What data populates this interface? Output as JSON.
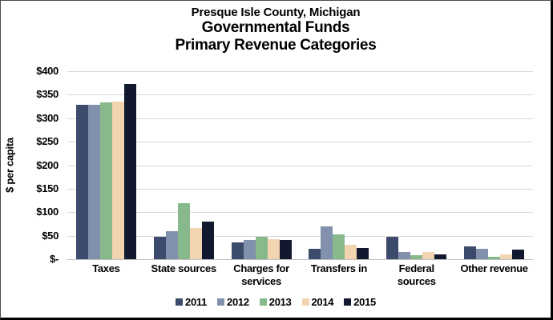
{
  "title": {
    "line1": "Presque Isle County, Michigan",
    "line2": "Governmental Funds",
    "line3": "Primary Revenue Categories"
  },
  "chart_data": {
    "type": "bar",
    "title": "Presque Isle County, Michigan Governmental Funds Primary Revenue Categories",
    "ylabel": "$ per capita",
    "ylim": [
      0,
      400
    ],
    "ytick_interval": 50,
    "ytick_labels_top_to_bottom": [
      "$400",
      "$350",
      "$300",
      "$250",
      "$200",
      "$150",
      "$100",
      "$50",
      "$-"
    ],
    "grid": true,
    "legend_position": "bottom",
    "categories": [
      {
        "label": "Taxes",
        "lines": [
          "Taxes"
        ]
      },
      {
        "label": "State sources",
        "lines": [
          "State sources"
        ]
      },
      {
        "label": "Charges for services",
        "lines": [
          "Charges for",
          "services"
        ]
      },
      {
        "label": "Transfers in",
        "lines": [
          "Transfers in"
        ]
      },
      {
        "label": "Federal sources",
        "lines": [
          "Federal",
          "sources"
        ]
      },
      {
        "label": "Other revenue",
        "lines": [
          "Other revenue"
        ]
      }
    ],
    "series": [
      {
        "name": "2011",
        "color": "#3c4a6b",
        "values": [
          328,
          48,
          35,
          22,
          48,
          27
        ]
      },
      {
        "name": "2012",
        "color": "#8190ac",
        "values": [
          328,
          59,
          40,
          70,
          16,
          22
        ]
      },
      {
        "name": "2013",
        "color": "#87b98c",
        "values": [
          333,
          119,
          48,
          52,
          9,
          5
        ]
      },
      {
        "name": "2014",
        "color": "#f2d5b0",
        "values": [
          336,
          66,
          43,
          31,
          16,
          11
        ]
      },
      {
        "name": "2015",
        "color": "#12192f",
        "values": [
          372,
          80,
          40,
          23,
          10,
          20
        ]
      }
    ]
  },
  "colors": {
    "background": "#ffffff",
    "gridline": "#d9d9d9",
    "axis_line": "#bfbfbf",
    "text": "#000000"
  }
}
